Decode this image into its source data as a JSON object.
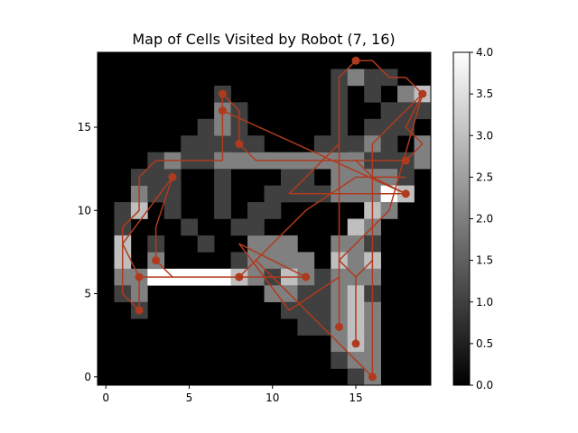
{
  "chart_data": {
    "type": "heatmap",
    "title": "Map of Cells Visited by Robot (7, 16)",
    "xlim": [
      -0.5,
      19.5
    ],
    "ylim": [
      -0.5,
      19.5
    ],
    "x_ticks": [
      0,
      5,
      10,
      15
    ],
    "y_ticks": [
      0,
      5,
      10,
      15
    ],
    "colormap": "gray",
    "vmin": 0,
    "vmax": 4,
    "colorbar_ticks": [
      "0.0",
      "0.5",
      "1.0",
      "1.5",
      "2.0",
      "2.5",
      "3.0",
      "3.5",
      "4.0"
    ],
    "path_color": "#b03a1e",
    "grid": false,
    "cells": [
      [
        18,
        17,
        1
      ],
      [
        18,
        15,
        1
      ],
      [
        16,
        15,
        1
      ],
      [
        17,
        15,
        1
      ],
      [
        15,
        14,
        1
      ],
      [
        16,
        14,
        2
      ],
      [
        17,
        14,
        1
      ],
      [
        18,
        13,
        1
      ],
      [
        14,
        13,
        2
      ],
      [
        15,
        13,
        2
      ],
      [
        16,
        13,
        1
      ],
      [
        17,
        13,
        1
      ],
      [
        14,
        12,
        2
      ],
      [
        15,
        12,
        2
      ],
      [
        16,
        12,
        2
      ],
      [
        17,
        12,
        2
      ],
      [
        18,
        12,
        1
      ],
      [
        13,
        11,
        1
      ],
      [
        14,
        11,
        2
      ],
      [
        15,
        11,
        2
      ],
      [
        16,
        11,
        2
      ],
      [
        17,
        11,
        4
      ],
      [
        18,
        11,
        3
      ],
      [
        11,
        12,
        1
      ],
      [
        12,
        12,
        1
      ],
      [
        12,
        11,
        1
      ],
      [
        10,
        11,
        1
      ],
      [
        11,
        11,
        1
      ],
      [
        16,
        10,
        3
      ],
      [
        17,
        10,
        2
      ],
      [
        15,
        9,
        3
      ],
      [
        16,
        9,
        2
      ],
      [
        9,
        10,
        1
      ],
      [
        10,
        10,
        1
      ],
      [
        14,
        8,
        2
      ],
      [
        15,
        8,
        2
      ],
      [
        16,
        8,
        1
      ],
      [
        9,
        8,
        2
      ],
      [
        10,
        8,
        2
      ],
      [
        11,
        8,
        2
      ],
      [
        14,
        7,
        3
      ],
      [
        15,
        7,
        2
      ],
      [
        16,
        7,
        3
      ],
      [
        8,
        7,
        1
      ],
      [
        9,
        7,
        2
      ],
      [
        10,
        7,
        2
      ],
      [
        11,
        7,
        2
      ],
      [
        12,
        7,
        2
      ],
      [
        13,
        6,
        1
      ],
      [
        14,
        6,
        2
      ],
      [
        15,
        6,
        2
      ],
      [
        16,
        6,
        2
      ],
      [
        9,
        6,
        2
      ],
      [
        10,
        6,
        1
      ],
      [
        11,
        6,
        3
      ],
      [
        12,
        6,
        2
      ],
      [
        13,
        5,
        1
      ],
      [
        14,
        5,
        2
      ],
      [
        15,
        5,
        3
      ],
      [
        16,
        5,
        1
      ],
      [
        10,
        5,
        2
      ],
      [
        11,
        5,
        2
      ],
      [
        12,
        5,
        1
      ],
      [
        13,
        4,
        1
      ],
      [
        14,
        4,
        2
      ],
      [
        15,
        4,
        3
      ],
      [
        16,
        4,
        2
      ],
      [
        11,
        4,
        1
      ],
      [
        12,
        4,
        1
      ],
      [
        13,
        3,
        1
      ],
      [
        14,
        3,
        2
      ],
      [
        15,
        3,
        3
      ],
      [
        16,
        3,
        2
      ],
      [
        12,
        3,
        1
      ],
      [
        14,
        2,
        2
      ],
      [
        15,
        2,
        3
      ],
      [
        16,
        2,
        2
      ],
      [
        14,
        1,
        1
      ],
      [
        15,
        1,
        2
      ],
      [
        16,
        1,
        2
      ],
      [
        15,
        0,
        1
      ],
      [
        16,
        0,
        2
      ],
      [
        2,
        6,
        2
      ],
      [
        3,
        6,
        4
      ],
      [
        4,
        6,
        4
      ],
      [
        5,
        6,
        4
      ],
      [
        6,
        6,
        4
      ],
      [
        7,
        6,
        4
      ],
      [
        8,
        6,
        3
      ],
      [
        3,
        7,
        2
      ],
      [
        3,
        8,
        1
      ],
      [
        1,
        9,
        1
      ],
      [
        1,
        8,
        3
      ],
      [
        1,
        7,
        3
      ],
      [
        1,
        6,
        2
      ],
      [
        1,
        5,
        1
      ],
      [
        2,
        5,
        2
      ],
      [
        2,
        4,
        1
      ],
      [
        1,
        10,
        1
      ],
      [
        2,
        10,
        3
      ],
      [
        2,
        11,
        2
      ],
      [
        3,
        11,
        1
      ],
      [
        2,
        12,
        1
      ],
      [
        3,
        12,
        1
      ],
      [
        4,
        12,
        1
      ],
      [
        3,
        13,
        1
      ],
      [
        4,
        13,
        2
      ],
      [
        5,
        13,
        1
      ],
      [
        6,
        13,
        1
      ],
      [
        5,
        14,
        1
      ],
      [
        6,
        14,
        1
      ],
      [
        7,
        14,
        1
      ],
      [
        6,
        15,
        1
      ],
      [
        7,
        15,
        2
      ],
      [
        7,
        16,
        2
      ],
      [
        7,
        17,
        1
      ],
      [
        8,
        16,
        1
      ],
      [
        8,
        15,
        1
      ],
      [
        7,
        13,
        2
      ],
      [
        8,
        13,
        2
      ],
      [
        9,
        13,
        2
      ],
      [
        10,
        13,
        2
      ],
      [
        11,
        13,
        2
      ],
      [
        12,
        13,
        2
      ],
      [
        13,
        13,
        2
      ],
      [
        8,
        14,
        1
      ],
      [
        9,
        14,
        1
      ],
      [
        7,
        12,
        1
      ],
      [
        7,
        11,
        1
      ],
      [
        7,
        10,
        1
      ],
      [
        8,
        9,
        1
      ],
      [
        9,
        9,
        1
      ],
      [
        4,
        11,
        1
      ],
      [
        4,
        10,
        1
      ],
      [
        5,
        9,
        1
      ],
      [
        6,
        8,
        1
      ],
      [
        14,
        18,
        1
      ],
      [
        15,
        18,
        2
      ],
      [
        16,
        18,
        1
      ],
      [
        17,
        18,
        1
      ],
      [
        18,
        17,
        2
      ],
      [
        19,
        17,
        3
      ],
      [
        19,
        16,
        1
      ],
      [
        18,
        16,
        1
      ],
      [
        19,
        14,
        2
      ],
      [
        19,
        13,
        2
      ],
      [
        14,
        17,
        1
      ],
      [
        14,
        16,
        1
      ],
      [
        14,
        15,
        1
      ],
      [
        14,
        14,
        1
      ],
      [
        17,
        16,
        1
      ],
      [
        16,
        17,
        1
      ],
      [
        13,
        14,
        1
      ]
    ],
    "path": [
      [
        7,
        16
      ],
      [
        7,
        17
      ],
      [
        8,
        16
      ],
      [
        8,
        14
      ],
      [
        9,
        13
      ],
      [
        18,
        13
      ],
      [
        19,
        14
      ],
      [
        18,
        15
      ],
      [
        19,
        17
      ],
      [
        18,
        18
      ],
      [
        17,
        18
      ],
      [
        16,
        19
      ],
      [
        15,
        19
      ],
      [
        14,
        18
      ],
      [
        14,
        3
      ],
      [
        14,
        13
      ],
      [
        15,
        13
      ],
      [
        16,
        12
      ],
      [
        18,
        11
      ],
      [
        16,
        11
      ],
      [
        16,
        7
      ],
      [
        15,
        6
      ],
      [
        15,
        2
      ],
      [
        15,
        6
      ],
      [
        14,
        7
      ],
      [
        17,
        10
      ],
      [
        19,
        17
      ],
      [
        16,
        14
      ],
      [
        16,
        1
      ],
      [
        16,
        0
      ],
      [
        14,
        2
      ],
      [
        9,
        7
      ],
      [
        8,
        6
      ],
      [
        2,
        6
      ],
      [
        12,
        6
      ],
      [
        8,
        8
      ],
      [
        11,
        4
      ],
      [
        14,
        6
      ],
      [
        14,
        14
      ],
      [
        11,
        11
      ],
      [
        18,
        11
      ],
      [
        7,
        16
      ],
      [
        7,
        13
      ],
      [
        3,
        13
      ],
      [
        2,
        12
      ],
      [
        2,
        10
      ],
      [
        1,
        9
      ],
      [
        1,
        5
      ],
      [
        2,
        4
      ],
      [
        2,
        6
      ],
      [
        1,
        8
      ],
      [
        4,
        12
      ],
      [
        3,
        9
      ],
      [
        3,
        7
      ],
      [
        4,
        6
      ],
      [
        8,
        6
      ],
      [
        12,
        10
      ],
      [
        15,
        12
      ],
      [
        18,
        12
      ]
    ],
    "markers": [
      [
        7,
        16
      ],
      [
        7,
        17
      ],
      [
        8,
        14
      ],
      [
        4,
        12
      ],
      [
        3,
        7
      ],
      [
        2,
        6
      ],
      [
        2,
        4
      ],
      [
        8,
        6
      ],
      [
        12,
        6
      ],
      [
        14,
        3
      ],
      [
        15,
        2
      ],
      [
        16,
        0
      ],
      [
        18,
        11
      ],
      [
        18,
        13
      ],
      [
        19,
        17
      ],
      [
        15,
        19
      ]
    ]
  },
  "colorbar": {
    "label": ""
  }
}
